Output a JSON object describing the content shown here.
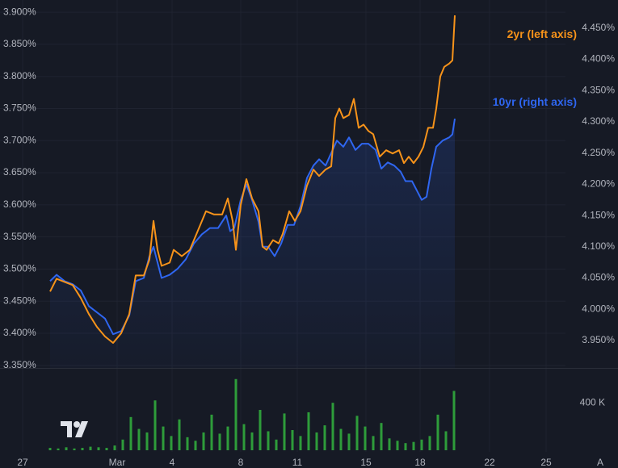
{
  "chart_data": [
    {
      "type": "line",
      "xlim": [
        0,
        700
      ],
      "ylim": [
        3.346,
        3.919
      ],
      "yticks": [
        {
          "value": 3.35,
          "label": "3.350%"
        },
        {
          "value": 3.4,
          "label": "3.400%"
        },
        {
          "value": 3.45,
          "label": "3.450%"
        },
        {
          "value": 3.5,
          "label": "3.500%"
        },
        {
          "value": 3.55,
          "label": "3.550%"
        },
        {
          "value": 3.6,
          "label": "3.600%"
        },
        {
          "value": 3.65,
          "label": "3.650%"
        },
        {
          "value": 3.7,
          "label": "3.700%"
        },
        {
          "value": 3.75,
          "label": "3.750%"
        },
        {
          "value": 3.8,
          "label": "3.800%"
        },
        {
          "value": 3.85,
          "label": "3.850%"
        },
        {
          "value": 3.9,
          "label": "3.900%"
        }
      ],
      "y2lim": [
        3.906,
        4.495
      ],
      "y2ticks": [
        {
          "value": 3.95,
          "label": "3.950%"
        },
        {
          "value": 4.0,
          "label": "4.000%"
        },
        {
          "value": 4.05,
          "label": "4.050%"
        },
        {
          "value": 4.1,
          "label": "4.100%"
        },
        {
          "value": 4.15,
          "label": "4.150%"
        },
        {
          "value": 4.2,
          "label": "4.200%"
        },
        {
          "value": 4.25,
          "label": "4.250%"
        },
        {
          "value": 4.3,
          "label": "4.300%"
        },
        {
          "value": 4.35,
          "label": "4.350%"
        },
        {
          "value": 4.4,
          "label": "4.400%"
        },
        {
          "value": 4.45,
          "label": "4.450%"
        }
      ],
      "grid": true,
      "series": [
        {
          "name": "2yr (left axis)",
          "color": "#f7931a",
          "x": [
            62,
            70,
            80,
            90,
            100,
            110,
            120,
            130,
            140,
            150,
            160,
            168,
            178,
            185,
            190,
            195,
            200,
            210,
            215,
            225,
            235,
            245,
            255,
            265,
            275,
            282,
            288,
            292,
            298,
            305,
            312,
            320,
            325,
            330,
            338,
            345,
            350,
            358,
            365,
            372,
            380,
            388,
            395,
            403,
            410,
            415,
            420,
            425,
            432,
            438,
            444,
            450,
            456,
            462,
            470,
            478,
            486,
            494,
            500,
            506,
            512,
            518,
            524,
            530,
            536,
            540,
            545,
            550,
            556,
            560,
            563
          ],
          "values": [
            3.465,
            3.485,
            3.48,
            3.475,
            3.455,
            3.43,
            3.41,
            3.395,
            3.385,
            3.4,
            3.43,
            3.49,
            3.49,
            3.515,
            3.575,
            3.53,
            3.505,
            3.51,
            3.53,
            3.52,
            3.53,
            3.56,
            3.59,
            3.585,
            3.585,
            3.61,
            3.575,
            3.53,
            3.6,
            3.64,
            3.61,
            3.59,
            3.535,
            3.53,
            3.545,
            3.54,
            3.555,
            3.59,
            3.575,
            3.59,
            3.63,
            3.655,
            3.645,
            3.655,
            3.66,
            3.735,
            3.75,
            3.735,
            3.74,
            3.765,
            3.72,
            3.725,
            3.715,
            3.71,
            3.675,
            3.685,
            3.68,
            3.685,
            3.665,
            3.675,
            3.665,
            3.675,
            3.69,
            3.72,
            3.72,
            3.75,
            3.8,
            3.815,
            3.82,
            3.825,
            3.895
          ]
        },
        {
          "name": "10yr (right axis)",
          "color": "#2f66f0",
          "axis": "y2",
          "x": [
            62,
            70,
            80,
            90,
            100,
            110,
            120,
            130,
            140,
            150,
            160,
            168,
            178,
            185,
            190,
            195,
            200,
            210,
            220,
            230,
            240,
            250,
            260,
            270,
            280,
            285,
            290,
            298,
            305,
            312,
            320,
            325,
            332,
            340,
            348,
            356,
            364,
            372,
            380,
            388,
            395,
            403,
            410,
            417,
            425,
            432,
            440,
            448,
            456,
            465,
            472,
            480,
            488,
            496,
            502,
            510,
            516,
            522,
            528,
            534,
            540,
            548,
            556,
            560,
            563
          ],
          "values": [
            4.045,
            4.055,
            4.045,
            4.04,
            4.03,
            4.005,
            3.995,
            3.985,
            3.96,
            3.965,
            3.99,
            4.045,
            4.05,
            4.085,
            4.1,
            4.075,
            4.05,
            4.055,
            4.065,
            4.08,
            4.105,
            4.12,
            4.13,
            4.13,
            4.15,
            4.125,
            4.13,
            4.175,
            4.2,
            4.175,
            4.14,
            4.1,
            4.1,
            4.085,
            4.105,
            4.135,
            4.135,
            4.165,
            4.21,
            4.23,
            4.24,
            4.23,
            4.25,
            4.27,
            4.26,
            4.275,
            4.255,
            4.265,
            4.265,
            4.255,
            4.225,
            4.235,
            4.23,
            4.22,
            4.205,
            4.205,
            4.19,
            4.175,
            4.18,
            4.225,
            4.26,
            4.27,
            4.275,
            4.28,
            4.305
          ]
        }
      ]
    },
    {
      "type": "bar",
      "xlim": [
        0,
        700
      ],
      "xticks": [
        {
          "value": 28,
          "label": "27"
        },
        {
          "value": 145,
          "label": "Mar"
        },
        {
          "value": 213,
          "label": "4"
        },
        {
          "value": 298,
          "label": "8"
        },
        {
          "value": 368,
          "label": "11"
        },
        {
          "value": 453,
          "label": "15"
        },
        {
          "value": 520,
          "label": "18"
        },
        {
          "value": 606,
          "label": "22"
        },
        {
          "value": 676,
          "label": "25"
        }
      ],
      "ylim": [
        0,
        680000
      ],
      "yticks": [
        {
          "value": 400000,
          "label": "400 K"
        }
      ],
      "color": "#2e9c3a",
      "x": [
        62,
        72,
        82,
        92,
        102,
        112,
        122,
        132,
        142,
        152,
        162,
        172,
        182,
        192,
        202,
        212,
        222,
        232,
        242,
        252,
        262,
        272,
        282,
        292,
        302,
        312,
        322,
        332,
        342,
        352,
        362,
        372,
        382,
        392,
        402,
        412,
        422,
        432,
        442,
        452,
        462,
        472,
        482,
        492,
        502,
        512,
        522,
        532,
        542,
        552,
        562
      ],
      "values": [
        20000,
        15000,
        25000,
        15000,
        20000,
        30000,
        25000,
        20000,
        40000,
        90000,
        280000,
        180000,
        150000,
        420000,
        200000,
        120000,
        260000,
        110000,
        80000,
        150000,
        300000,
        140000,
        200000,
        600000,
        220000,
        150000,
        340000,
        160000,
        90000,
        310000,
        170000,
        120000,
        320000,
        150000,
        210000,
        400000,
        180000,
        140000,
        290000,
        200000,
        120000,
        230000,
        100000,
        80000,
        60000,
        70000,
        90000,
        120000,
        300000,
        160000,
        500000
      ]
    }
  ],
  "ui": {
    "auto_scale_button": "A"
  }
}
